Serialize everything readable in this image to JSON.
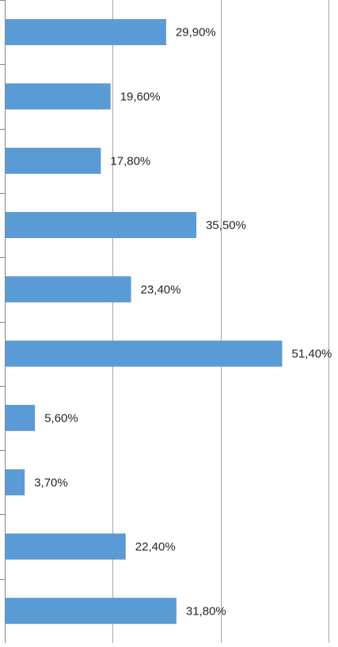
{
  "chart_data": {
    "type": "bar",
    "orientation": "horizontal",
    "title": "",
    "xlabel": "",
    "ylabel": "",
    "xlim": [
      0,
      0.6
    ],
    "grid": "vertical",
    "legend": "none",
    "bar_color": "#5b9bd5",
    "grid_color": "#a6a6a6",
    "axis_color": "#868686",
    "label_color": "#262626",
    "values": [
      0.299,
      0.196,
      0.178,
      0.355,
      0.234,
      0.514,
      0.056,
      0.037,
      0.224,
      0.318
    ],
    "data_labels": [
      "29,90%",
      "19,60%",
      "17,80%",
      "35,50%",
      "23,40%",
      "51,40%",
      "5,60%",
      "3,70%",
      "22,40%",
      "31,80%"
    ]
  }
}
